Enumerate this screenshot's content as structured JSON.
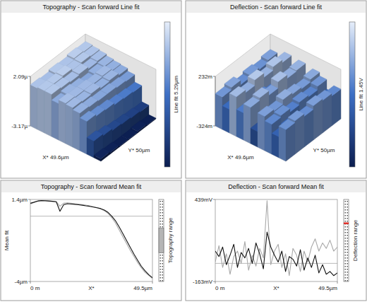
{
  "chart_data": [
    {
      "type": "surface",
      "title": "Topography - Scan forward Line fit",
      "x_label": "X* 49.6µm",
      "y_label": "Y* 50µm",
      "colorbar_label": "Line fit 5.29µm",
      "zlim": [
        -3.17,
        2.09
      ],
      "zticks": [
        {
          "value": 2.09,
          "label": "2.09µ"
        },
        {
          "value": -3.17,
          "label": "-3.17µ"
        }
      ],
      "cells": [
        [
          1.2,
          1.3,
          1.3,
          0.7,
          1.1,
          1.0,
          0.8,
          0.3,
          -1.4,
          -2.9
        ],
        [
          1.1,
          1.3,
          1.2,
          0.9,
          1.0,
          0.9,
          0.7,
          0.1,
          -1.6,
          -3.0
        ],
        [
          1.3,
          1.4,
          1.1,
          0.8,
          1.0,
          1.0,
          0.6,
          0.0,
          -1.8,
          -3.1
        ],
        [
          1.2,
          1.2,
          1.2,
          0.6,
          0.9,
          0.8,
          0.6,
          -0.2,
          -1.9,
          -3.1
        ],
        [
          1.4,
          1.3,
          1.0,
          0.8,
          1.0,
          0.9,
          0.5,
          -0.3,
          -2.0,
          -3.0
        ],
        [
          1.3,
          1.2,
          1.1,
          0.9,
          0.8,
          0.7,
          0.4,
          -0.4,
          -2.1,
          -3.1
        ]
      ]
    },
    {
      "type": "surface",
      "title": "Deflection - Scan forward Line fit",
      "x_label": "X* 49.6µm",
      "y_label": "Y* 50µm",
      "colorbar_label": "Line fit 1.45V",
      "zlim": [
        -324,
        232
      ],
      "zticks": [
        {
          "value": 232,
          "label": "232m"
        },
        {
          "value": -324,
          "label": "-324m"
        }
      ],
      "cells": [
        [
          40,
          -60,
          120,
          -20,
          80,
          -150,
          60,
          10,
          -90,
          30
        ],
        [
          70,
          -30,
          90,
          -40,
          110,
          -120,
          40,
          30,
          -60,
          50
        ],
        [
          20,
          -80,
          150,
          0,
          60,
          -180,
          90,
          -10,
          -110,
          20
        ],
        [
          50,
          -50,
          100,
          -30,
          130,
          -140,
          70,
          20,
          -80,
          60
        ],
        [
          30,
          -90,
          140,
          -10,
          90,
          -160,
          50,
          0,
          -100,
          40
        ],
        [
          60,
          -40,
          110,
          -50,
          100,
          -130,
          80,
          40,
          -70,
          10
        ]
      ]
    },
    {
      "type": "line",
      "title": "Topography - Scan forward Mean fit",
      "xlabel": "X*",
      "ylabel": "Mean fit",
      "side_label": "Topography range",
      "grid": false,
      "xlim": [
        0,
        49.5
      ],
      "ylim": [
        -4,
        1.4
      ],
      "xticks": [
        {
          "value": 0,
          "label": "0 m"
        },
        {
          "value": 49.5,
          "label": "49.5µm"
        }
      ],
      "yticks": [
        {
          "value": -4,
          "label": "-4µm"
        },
        {
          "value": 1.4,
          "label": "1.4µm"
        }
      ],
      "mean_line": 0.3,
      "x": [
        0,
        1.5,
        3,
        4.5,
        6,
        7.5,
        9,
        10.5,
        12,
        13.5,
        15,
        16.5,
        18,
        19.5,
        21,
        22.5,
        24,
        25.5,
        27,
        28.5,
        30,
        31.5,
        33,
        34.5,
        36,
        37.5,
        39,
        40.5,
        42,
        43.5,
        45,
        46.5,
        48,
        49.5
      ],
      "series": [
        {
          "color": "#a8a8a8",
          "values": [
            1.1,
            1.2,
            1.28,
            1.3,
            1.3,
            1.28,
            1.27,
            1.25,
            0.95,
            1.15,
            1.18,
            1.15,
            1.12,
            1.1,
            1.06,
            1.02,
            0.98,
            0.92,
            0.86,
            0.78,
            0.66,
            0.48,
            0.2,
            -0.15,
            -0.6,
            -1.05,
            -1.5,
            -1.95,
            -2.35,
            -2.75,
            -3.1,
            -3.4,
            -3.6,
            -3.8
          ]
        },
        {
          "color": "#111111",
          "values": [
            1.15,
            1.22,
            1.3,
            1.33,
            1.32,
            1.3,
            1.28,
            1.25,
            0.62,
            1.05,
            1.12,
            1.1,
            1.08,
            1.05,
            1.02,
            0.98,
            0.95,
            0.9,
            0.85,
            0.8,
            0.7,
            0.55,
            0.3,
            0.0,
            -0.4,
            -0.85,
            -1.3,
            -1.75,
            -2.2,
            -2.6,
            -3.0,
            -3.3,
            -3.55,
            -3.75
          ]
        }
      ]
    },
    {
      "type": "line",
      "title": "Deflection - Scan forward Mean fit",
      "xlabel": "X*",
      "side_label": "Deflection range",
      "grid": false,
      "xlim": [
        0,
        49.5
      ],
      "ylim": [
        -163,
        439
      ],
      "xticks": [
        {
          "value": 0,
          "label": "0 m"
        },
        {
          "value": 49.5,
          "label": "49.5µm"
        }
      ],
      "yticks": [
        {
          "value": -163,
          "label": "-163mV"
        },
        {
          "value": 439,
          "label": "439mV"
        }
      ],
      "mean_line": -30,
      "x": [
        0,
        1.5,
        3,
        4.5,
        6,
        7.5,
        9,
        10.5,
        12,
        13.5,
        15,
        16.5,
        18,
        19.5,
        21,
        22.5,
        24,
        25.5,
        27,
        28.5,
        30,
        31.5,
        33,
        34.5,
        36,
        37.5,
        39,
        40.5,
        42,
        43.5,
        45,
        46.5,
        48,
        49.5
      ],
      "series": [
        {
          "color": "#a8a8a8",
          "values": [
            -20,
            100,
            -60,
            40,
            -110,
            20,
            60,
            -30,
            130,
            -80,
            30,
            -50,
            80,
            10,
            430,
            -40,
            60,
            110,
            -60,
            40,
            -120,
            80,
            30,
            -90,
            60,
            -20,
            90,
            150,
            60,
            120,
            80,
            140,
            60,
            90
          ]
        },
        {
          "color": "#111111",
          "values": [
            60,
            20,
            90,
            -40,
            30,
            110,
            -60,
            50,
            10,
            80,
            -30,
            120,
            40,
            -70,
            200,
            90,
            30,
            -20,
            60,
            -90,
            20,
            0,
            -50,
            70,
            -80,
            10,
            -60,
            30,
            -100,
            -40,
            -110,
            -90,
            -120,
            -100
          ]
        }
      ]
    }
  ]
}
